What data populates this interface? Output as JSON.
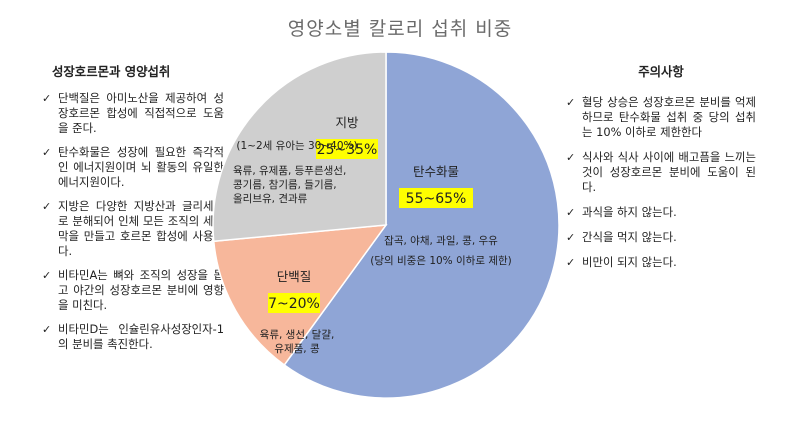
{
  "title": "영양소별 칼로리 섭취 비중",
  "left_panel": {
    "heading": "성장호르몬과 영양섭취",
    "items": [
      "단백질은 아미노산을 제공하여 성장호르몬 합성에 직접적으로 도움을 준다.",
      "탄수화물은 성장에 필요한 즉각적인 에너지원이며 뇌 활동의 유일한 에너지원이다.",
      "지방은 다양한 지방산과 글리세롤로 분해되어 인체 모든 조직의 세포막을 만들고 호르몬 합성에 사용된다.",
      "비타민A는 뼈와 조직의 성장을 돕고 야간의 성장호르몬 분비에 영향을 미친다.",
      "비타민D는 인슐린유사성장인자-1의 분비를 촉진한다."
    ]
  },
  "right_panel": {
    "heading": "주의사항",
    "items": [
      "혈당 상승은 성장호르몬 분비를 억제하므로 탄수화물 섭취 중 당의 섭취는 10% 이하로 제한한다",
      "식사와 식사 사이에 배고픔을 느끼는 것이 성장호르몬 분비에 도움이 된다.",
      "과식을 하지 않는다.",
      "간식을 먹지 않는다.",
      "비만이 되지 않는다."
    ]
  },
  "check_mark": "✓",
  "chart_data": {
    "type": "pie",
    "title": "영양소별 칼로리 섭취 비중",
    "slices": [
      {
        "name": "탄수화물",
        "range": "55~65%",
        "value": 60,
        "foods": [
          "잡곡, 야채, 과일, 콩, 우유"
        ],
        "note": "(당의 비중은 10% 이하로 제한)",
        "color": "#8fa5d6"
      },
      {
        "name": "단백질",
        "range": "7~20%",
        "value": 13.5,
        "foods": [
          "육류, 생선, 달걀,",
          "유제품, 콩"
        ],
        "note": "",
        "color": "#f7b79b"
      },
      {
        "name": "지방",
        "range": "25~35%",
        "value": 26.5,
        "foods": [
          "육류, 유제품, 등푸른생선,",
          "콩기름, 참기름, 들기름,",
          "올리브유, 견과류"
        ],
        "note": "(1~2세 유아는 30~40%)",
        "color": "#cfcfcf"
      }
    ],
    "label_highlight_color": "#ffff00"
  }
}
